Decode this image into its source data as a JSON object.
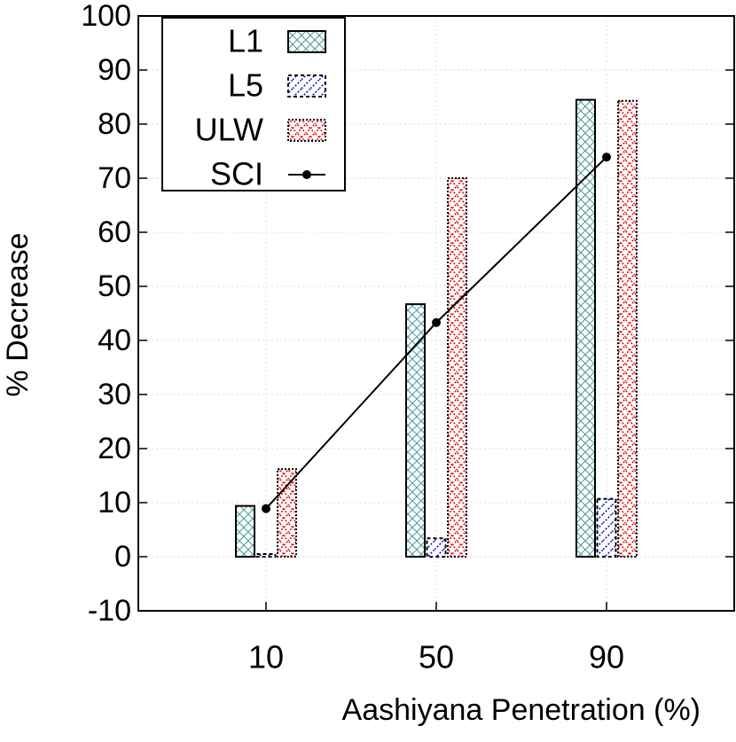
{
  "chart_data": {
    "type": "bar",
    "x_label": "Aashiyana Penetration (%)",
    "y_label": "% Decrease",
    "x": [
      10,
      50,
      90
    ],
    "xlim": [
      -20,
      120
    ],
    "xticks": [
      10,
      50,
      90
    ],
    "ylim": [
      -10,
      100
    ],
    "yticks": [
      -10,
      0,
      10,
      20,
      30,
      40,
      50,
      60,
      70,
      80,
      90,
      100
    ],
    "grid": true,
    "legend": "top-left",
    "series": [
      {
        "name": "L1",
        "type": "bar",
        "color": "#4a9a9a",
        "values": [
          9.4,
          46.7,
          84.5
        ]
      },
      {
        "name": "L5",
        "type": "bar",
        "color": "#0000cc",
        "values": [
          0.5,
          3.4,
          10.7
        ]
      },
      {
        "name": "ULW",
        "type": "bar",
        "color": "#dd0000",
        "values": [
          16.2,
          70,
          84.3
        ]
      },
      {
        "name": "SCI",
        "type": "line",
        "color": "#000000",
        "values": [
          8.9,
          43.3,
          73.9
        ]
      }
    ]
  }
}
